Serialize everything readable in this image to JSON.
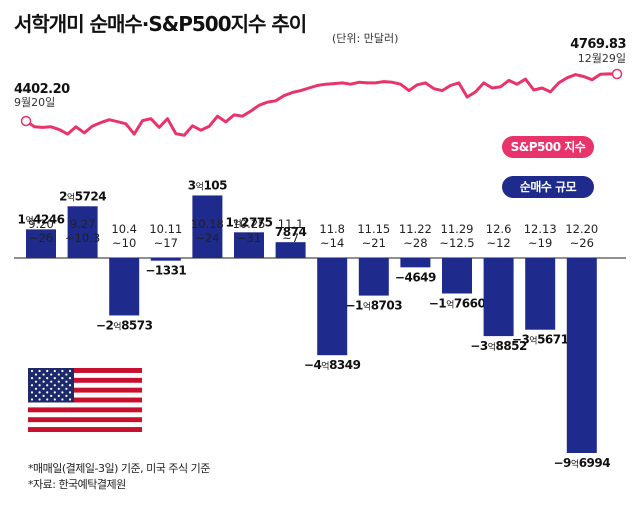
{
  "title": "서학개미 순매수·S&P500지수 추이",
  "unit": "(단위: 만달러)",
  "legend": {
    "line": "S&P500 지수",
    "bar": "순매수 규모"
  },
  "notes": [
    "*매매일(결제일-3일) 기준, 미국 주식 기준",
    "*자료: 한국예탁결제원"
  ],
  "colors": {
    "line": "#e8336b",
    "bar": "#1e2a8c"
  },
  "chart_data": [
    {
      "type": "bar",
      "categories": [
        [
          "9.20",
          "~26"
        ],
        [
          "9.27",
          "~10.3"
        ],
        [
          "10.4",
          "~10"
        ],
        [
          "10.11",
          "~17"
        ],
        [
          "10.18",
          "~24"
        ],
        [
          "10.25",
          "~31"
        ],
        [
          "11.1",
          "~7"
        ],
        [
          "11.8",
          "~14"
        ],
        [
          "11.15",
          "~21"
        ],
        [
          "11.22",
          "~28"
        ],
        [
          "11.29",
          "~12.5"
        ],
        [
          "12.6",
          "~12"
        ],
        [
          "12.13",
          "~19"
        ],
        [
          "12.20",
          "~26"
        ]
      ],
      "values": [
        14246,
        25724,
        -28573,
        -1331,
        31105,
        12775,
        7874,
        -48349,
        -18703,
        -4649,
        -17660,
        -38852,
        -35671,
        -96994
      ],
      "labels": [
        [
          "1",
          "억",
          "4246"
        ],
        [
          "2",
          "억",
          "5724"
        ],
        [
          "−2",
          "억",
          "8573"
        ],
        [
          "−1331",
          "",
          ""
        ],
        [
          "3",
          "억",
          "105"
        ],
        [
          "1",
          "억",
          "2775"
        ],
        [
          "7874",
          "",
          ""
        ],
        [
          "−4",
          "억",
          "8349"
        ],
        [
          "−1",
          "억",
          "8703"
        ],
        [
          "−4649",
          "",
          ""
        ],
        [
          "−1",
          "억",
          "7660"
        ],
        [
          "−3",
          "억",
          "8852"
        ],
        [
          "−3",
          "억",
          "5671"
        ],
        [
          "−9",
          "억",
          "6994"
        ]
      ],
      "series": [
        {
          "name": "순매수 규모",
          "values": [
            14246,
            25724,
            -28573,
            -1331,
            31105,
            12775,
            7874,
            -48349,
            -18703,
            -4649,
            -17660,
            -38852,
            -35671,
            -96994
          ]
        }
      ]
    },
    {
      "type": "line",
      "series": [
        {
          "name": "S&P500 지수"
        }
      ],
      "values": [
        4402.2,
        4358,
        4352,
        4357,
        4335,
        4300,
        4357,
        4310,
        4363,
        4390,
        4412,
        4397,
        4380,
        4300,
        4405,
        4420,
        4352,
        4420,
        4304,
        4290,
        4365,
        4330,
        4360,
        4440,
        4395,
        4450,
        4440,
        4480,
        4525,
        4550,
        4560,
        4600,
        4625,
        4640,
        4660,
        4680,
        4690,
        4695,
        4700,
        4690,
        4705,
        4700,
        4700,
        4710,
        4705,
        4690,
        4640,
        4685,
        4700,
        4655,
        4640,
        4680,
        4700,
        4590,
        4630,
        4700,
        4660,
        4670,
        4720,
        4690,
        4730,
        4645,
        4660,
        4630,
        4700,
        4740,
        4765,
        4750,
        4725,
        4768,
        4771,
        4769.83
      ],
      "start_label": {
        "value": "4402.20",
        "date": "9월20일"
      },
      "end_label": {
        "value": "4769.83",
        "date": "12월29일"
      }
    }
  ]
}
